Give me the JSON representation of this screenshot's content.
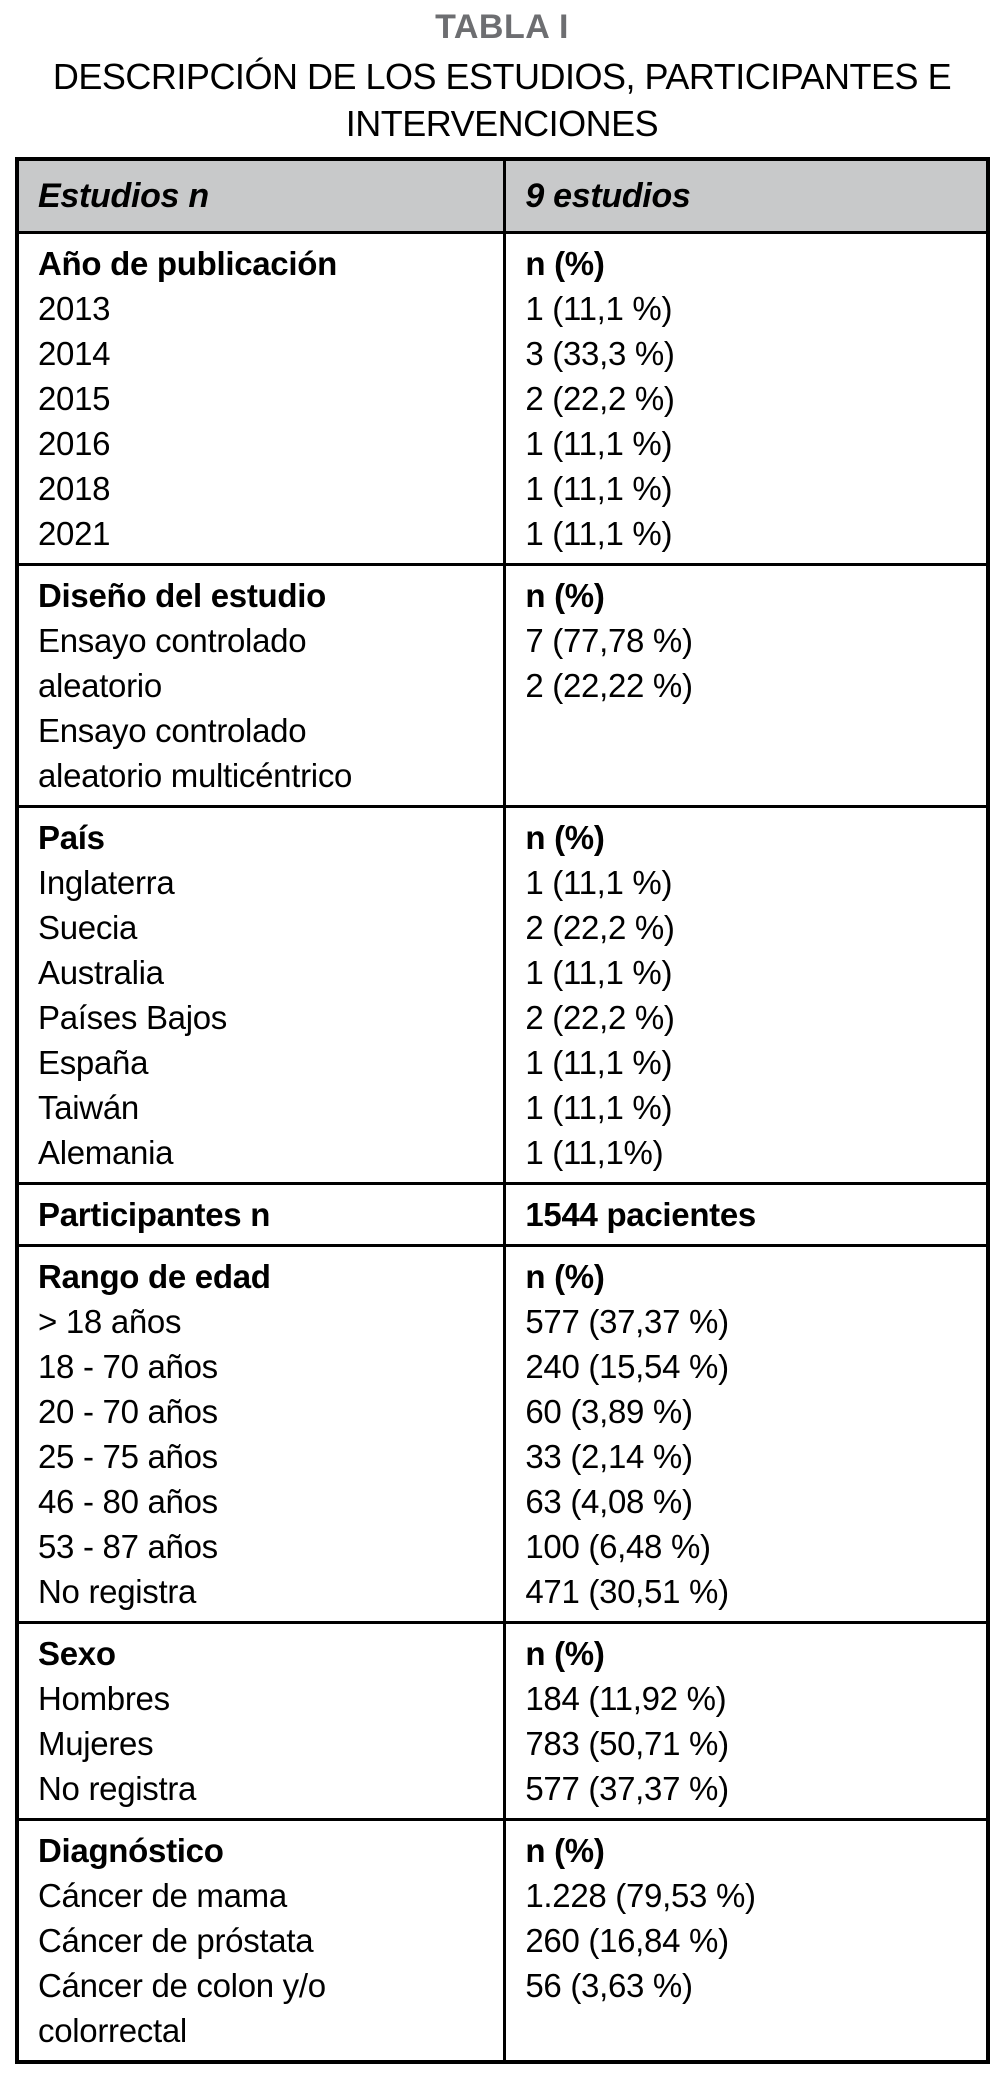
{
  "header": {
    "title": "TABLA I",
    "subtitle_lines": [
      "DESCRIPCIÓN DE LOS ESTUDIOS, PARTICIPANTES E",
      "INTERVENCIONES"
    ]
  },
  "colors": {
    "title_gray": "#6d6e71",
    "header_row_bg": "#c8c9ca",
    "border": "#000000"
  },
  "table": {
    "header": {
      "left": "Estudios n",
      "right": "9 estudios"
    },
    "sections": [
      {
        "label": "Año de publicación",
        "value_label": "n (%)",
        "left_lines": [
          "2013",
          "2014",
          "2015",
          "2016",
          "2018",
          "2021"
        ],
        "right_lines": [
          "1 (11,1 %)",
          "3 (33,3 %)",
          "2 (22,2 %)",
          "1 (11,1 %)",
          "1 (11,1 %)",
          "1 (11,1 %)"
        ]
      },
      {
        "label": "Diseño del estudio",
        "value_label": "n (%)",
        "left_lines": [
          "Ensayo controlado",
          "aleatorio",
          "Ensayo controlado",
          "aleatorio multicéntrico"
        ],
        "right_lines": [
          "7 (77,78 %)",
          "2 (22,22 %)"
        ]
      },
      {
        "label": "País",
        "value_label": "n (%)",
        "left_lines": [
          "Inglaterra",
          "Suecia",
          "Australia",
          "Países Bajos",
          "España",
          "Taiwán",
          "Alemania"
        ],
        "right_lines": [
          "1 (11,1 %)",
          "2 (22,2 %)",
          "1 (11,1 %)",
          "2 (22,2 %)",
          "1 (11,1 %)",
          "1 (11,1 %)",
          "1 (11,1%)"
        ]
      },
      {
        "label": "Participantes n",
        "value_label": "1544 pacientes",
        "left_lines": [],
        "right_lines": []
      },
      {
        "label": "Rango de edad",
        "value_label": "n (%)",
        "left_lines": [
          "> 18 años",
          "18 - 70 años",
          "20 - 70 años",
          "25 - 75 años",
          "46 - 80 años",
          "53 - 87 años",
          "No registra"
        ],
        "right_lines": [
          "577 (37,37 %)",
          "240 (15,54 %)",
          "60 (3,89 %)",
          "33 (2,14 %)",
          "63 (4,08 %)",
          "100 (6,48 %)",
          "471 (30,51 %)"
        ]
      },
      {
        "label": "Sexo",
        "value_label": "n (%)",
        "left_lines": [
          "Hombres",
          "Mujeres",
          "No registra"
        ],
        "right_lines": [
          "184 (11,92 %)",
          "783 (50,71 %)",
          "577 (37,37 %)"
        ]
      },
      {
        "label": "Diagnóstico",
        "value_label": "n (%)",
        "left_lines": [
          "Cáncer de mama",
          "Cáncer de próstata",
          "Cáncer de colon y/o",
          "colorrectal"
        ],
        "right_lines": [
          "1.228 (79,53 %)",
          "260 (16,84 %)",
          "56 (3,63 %)"
        ]
      }
    ]
  }
}
